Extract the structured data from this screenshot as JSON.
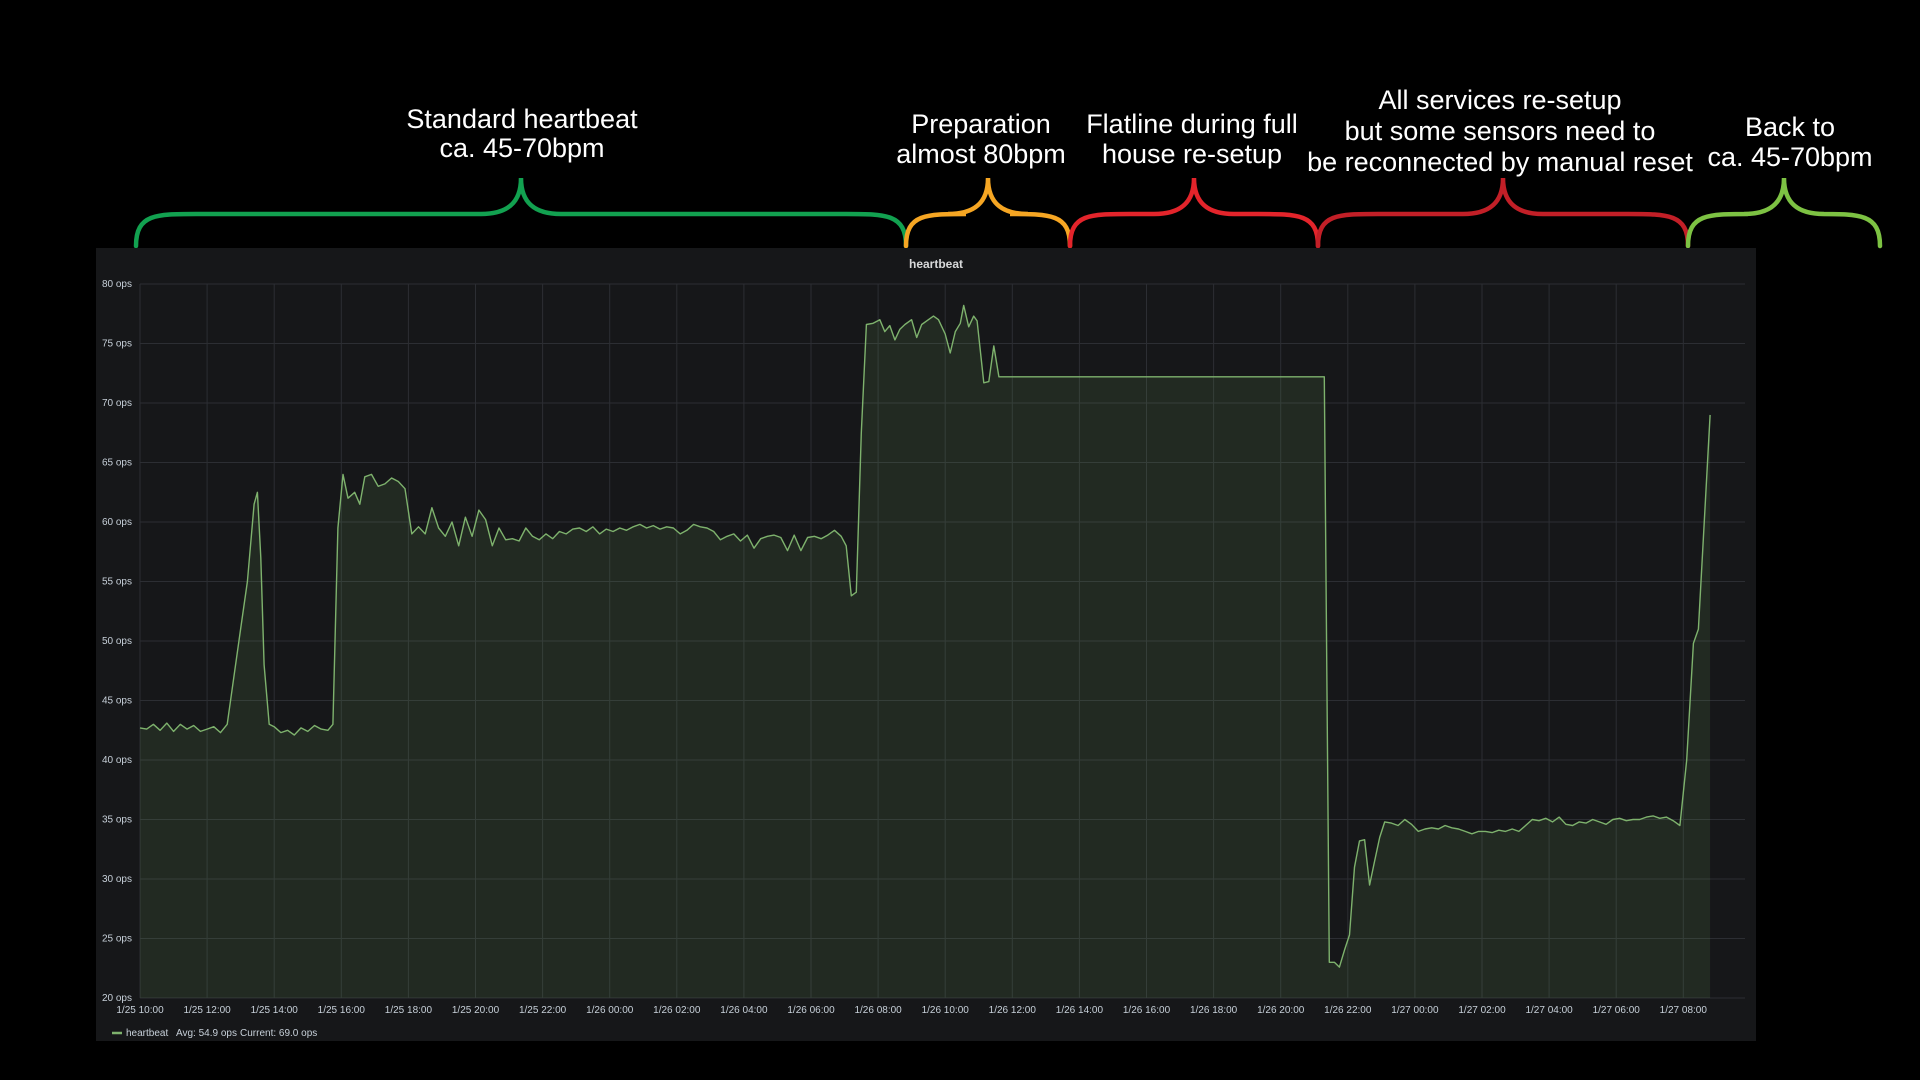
{
  "annotations": [
    {
      "lines": [
        "Standard heartbeat",
        "ca. 45-70bpm"
      ],
      "color": "#12a150"
    },
    {
      "lines": [
        "Preparation",
        "almost 80bpm"
      ],
      "color": "#f6a623"
    },
    {
      "lines": [
        "Flatline during full",
        "house re-setup"
      ],
      "color": "#e3242b"
    },
    {
      "lines": [
        "All services re-setup",
        "but some sensors need to",
        "be reconnected by manual reset"
      ],
      "color": "#c21f27"
    },
    {
      "lines": [
        "Back to",
        "ca. 45-70bpm"
      ],
      "color": "#7dc243"
    }
  ],
  "chart_data": {
    "type": "area",
    "title": "heartbeat",
    "ylim": [
      20,
      80
    ],
    "y_ticks": [
      "20 ops",
      "25 ops",
      "30 ops",
      "35 ops",
      "40 ops",
      "45 ops",
      "50 ops",
      "55 ops",
      "60 ops",
      "65 ops",
      "70 ops",
      "75 ops",
      "80 ops"
    ],
    "x_ticks": [
      "1/25 10:00",
      "1/25 12:00",
      "1/25 14:00",
      "1/25 16:00",
      "1/25 18:00",
      "1/25 20:00",
      "1/25 22:00",
      "1/26 00:00",
      "1/26 02:00",
      "1/26 04:00",
      "1/26 06:00",
      "1/26 08:00",
      "1/26 10:00",
      "1/26 12:00",
      "1/26 14:00",
      "1/26 16:00",
      "1/26 18:00",
      "1/26 20:00",
      "1/26 22:00",
      "1/27 00:00",
      "1/27 02:00",
      "1/27 04:00",
      "1/27 06:00",
      "1/27 08:00"
    ],
    "grid": true,
    "series": [
      {
        "name": "heartbeat",
        "color": "#7eb26d",
        "points": [
          [
            0,
            42.7
          ],
          [
            0.2,
            42.6
          ],
          [
            0.4,
            43.0
          ],
          [
            0.6,
            42.5
          ],
          [
            0.8,
            43.1
          ],
          [
            1.0,
            42.4
          ],
          [
            1.2,
            43.0
          ],
          [
            1.4,
            42.6
          ],
          [
            1.6,
            42.9
          ],
          [
            1.8,
            42.4
          ],
          [
            2.0,
            42.6
          ],
          [
            2.2,
            42.8
          ],
          [
            2.4,
            42.3
          ],
          [
            2.6,
            43.0
          ],
          [
            2.8,
            47.0
          ],
          [
            3.0,
            51.0
          ],
          [
            3.2,
            55.0
          ],
          [
            3.4,
            61.5
          ],
          [
            3.5,
            62.5
          ],
          [
            3.6,
            57.0
          ],
          [
            3.7,
            48.0
          ],
          [
            3.85,
            43.0
          ],
          [
            4.0,
            42.8
          ],
          [
            4.2,
            42.3
          ],
          [
            4.4,
            42.5
          ],
          [
            4.6,
            42.1
          ],
          [
            4.8,
            42.7
          ],
          [
            5.0,
            42.4
          ],
          [
            5.2,
            42.9
          ],
          [
            5.4,
            42.6
          ],
          [
            5.6,
            42.5
          ],
          [
            5.75,
            43.0
          ],
          [
            5.9,
            59.5
          ],
          [
            6.05,
            64.0
          ],
          [
            6.2,
            62.0
          ],
          [
            6.4,
            62.5
          ],
          [
            6.55,
            61.5
          ],
          [
            6.7,
            63.8
          ],
          [
            6.9,
            64.0
          ],
          [
            7.1,
            63.0
          ],
          [
            7.3,
            63.2
          ],
          [
            7.5,
            63.7
          ],
          [
            7.7,
            63.4
          ],
          [
            7.9,
            62.8
          ],
          [
            8.1,
            59.0
          ],
          [
            8.3,
            59.6
          ],
          [
            8.5,
            59.0
          ],
          [
            8.7,
            61.2
          ],
          [
            8.9,
            59.5
          ],
          [
            9.1,
            58.8
          ],
          [
            9.3,
            60.0
          ],
          [
            9.5,
            58.0
          ],
          [
            9.7,
            60.4
          ],
          [
            9.9,
            58.8
          ],
          [
            10.1,
            61.0
          ],
          [
            10.3,
            60.2
          ],
          [
            10.5,
            58.0
          ],
          [
            10.7,
            59.5
          ],
          [
            10.9,
            58.5
          ],
          [
            11.1,
            58.6
          ],
          [
            11.3,
            58.4
          ],
          [
            11.5,
            59.5
          ],
          [
            11.7,
            58.8
          ],
          [
            11.9,
            58.5
          ],
          [
            12.1,
            59.0
          ],
          [
            12.3,
            58.6
          ],
          [
            12.5,
            59.2
          ],
          [
            12.7,
            59.0
          ],
          [
            12.9,
            59.4
          ],
          [
            13.1,
            59.5
          ],
          [
            13.3,
            59.2
          ],
          [
            13.5,
            59.6
          ],
          [
            13.7,
            59.0
          ],
          [
            13.9,
            59.4
          ],
          [
            14.1,
            59.2
          ],
          [
            14.3,
            59.5
          ],
          [
            14.5,
            59.3
          ],
          [
            14.7,
            59.6
          ],
          [
            14.9,
            59.8
          ],
          [
            15.1,
            59.5
          ],
          [
            15.3,
            59.7
          ],
          [
            15.5,
            59.4
          ],
          [
            15.7,
            59.6
          ],
          [
            15.9,
            59.5
          ],
          [
            16.1,
            59.0
          ],
          [
            16.3,
            59.3
          ],
          [
            16.5,
            59.8
          ],
          [
            16.7,
            59.6
          ],
          [
            16.9,
            59.5
          ],
          [
            17.1,
            59.2
          ],
          [
            17.3,
            58.5
          ],
          [
            17.5,
            58.8
          ],
          [
            17.7,
            59.0
          ],
          [
            17.9,
            58.4
          ],
          [
            18.1,
            58.9
          ],
          [
            18.3,
            57.8
          ],
          [
            18.5,
            58.6
          ],
          [
            18.7,
            58.8
          ],
          [
            18.9,
            58.9
          ],
          [
            19.1,
            58.7
          ],
          [
            19.3,
            57.6
          ],
          [
            19.5,
            58.9
          ],
          [
            19.7,
            57.6
          ],
          [
            19.9,
            58.7
          ],
          [
            20.1,
            58.8
          ],
          [
            20.3,
            58.6
          ],
          [
            20.5,
            58.9
          ],
          [
            20.7,
            59.3
          ],
          [
            20.9,
            58.8
          ],
          [
            21.05,
            58.0
          ],
          [
            21.2,
            53.8
          ],
          [
            21.35,
            54.1
          ],
          [
            21.5,
            67.5
          ],
          [
            21.65,
            76.6
          ],
          [
            21.85,
            76.7
          ],
          [
            22.05,
            77.0
          ],
          [
            22.2,
            76.0
          ],
          [
            22.35,
            76.5
          ],
          [
            22.5,
            75.3
          ],
          [
            22.65,
            76.2
          ],
          [
            22.8,
            76.6
          ],
          [
            23.0,
            77.0
          ],
          [
            23.15,
            75.5
          ],
          [
            23.3,
            76.6
          ],
          [
            23.5,
            77.0
          ],
          [
            23.65,
            77.3
          ],
          [
            23.8,
            77.0
          ],
          [
            24.0,
            75.8
          ],
          [
            24.15,
            74.2
          ],
          [
            24.3,
            76.0
          ],
          [
            24.45,
            76.7
          ],
          [
            24.55,
            78.2
          ],
          [
            24.7,
            76.4
          ],
          [
            24.85,
            77.3
          ],
          [
            24.95,
            76.9
          ],
          [
            25.15,
            71.7
          ],
          [
            25.3,
            71.8
          ],
          [
            25.45,
            74.8
          ],
          [
            25.6,
            72.2
          ],
          [
            35.3,
            72.2
          ],
          [
            35.45,
            23.0
          ],
          [
            35.6,
            23.0
          ],
          [
            35.75,
            22.6
          ],
          [
            35.9,
            24.0
          ],
          [
            36.05,
            25.3
          ],
          [
            36.2,
            31.0
          ],
          [
            36.35,
            33.2
          ],
          [
            36.5,
            33.3
          ],
          [
            36.65,
            29.5
          ],
          [
            36.8,
            31.5
          ],
          [
            36.95,
            33.5
          ],
          [
            37.1,
            34.8
          ],
          [
            37.3,
            34.7
          ],
          [
            37.5,
            34.5
          ],
          [
            37.7,
            35.0
          ],
          [
            37.9,
            34.6
          ],
          [
            38.1,
            34.0
          ],
          [
            38.3,
            34.2
          ],
          [
            38.5,
            34.3
          ],
          [
            38.7,
            34.2
          ],
          [
            38.9,
            34.5
          ],
          [
            39.1,
            34.3
          ],
          [
            39.3,
            34.2
          ],
          [
            39.5,
            34.0
          ],
          [
            39.7,
            33.8
          ],
          [
            39.9,
            34.0
          ],
          [
            40.1,
            34.0
          ],
          [
            40.3,
            33.9
          ],
          [
            40.5,
            34.1
          ],
          [
            40.7,
            34.0
          ],
          [
            40.9,
            34.2
          ],
          [
            41.1,
            34.0
          ],
          [
            41.3,
            34.5
          ],
          [
            41.5,
            35.0
          ],
          [
            41.7,
            34.9
          ],
          [
            41.9,
            35.1
          ],
          [
            42.1,
            34.8
          ],
          [
            42.3,
            35.2
          ],
          [
            42.5,
            34.6
          ],
          [
            42.7,
            34.5
          ],
          [
            42.9,
            34.8
          ],
          [
            43.1,
            34.7
          ],
          [
            43.3,
            35.0
          ],
          [
            43.5,
            34.8
          ],
          [
            43.7,
            34.6
          ],
          [
            43.9,
            35.0
          ],
          [
            44.1,
            35.1
          ],
          [
            44.3,
            34.9
          ],
          [
            44.5,
            35.0
          ],
          [
            44.7,
            35.0
          ],
          [
            44.9,
            35.2
          ],
          [
            45.1,
            35.3
          ],
          [
            45.3,
            35.1
          ],
          [
            45.5,
            35.2
          ],
          [
            45.7,
            34.9
          ],
          [
            45.9,
            34.5
          ],
          [
            46.1,
            40.0
          ],
          [
            46.3,
            49.8
          ],
          [
            46.45,
            51.0
          ],
          [
            46.8,
            69.0
          ]
        ],
        "avg_label": "Avg: 54.9 ops",
        "current_label": "Current: 69.0 ops"
      }
    ]
  }
}
